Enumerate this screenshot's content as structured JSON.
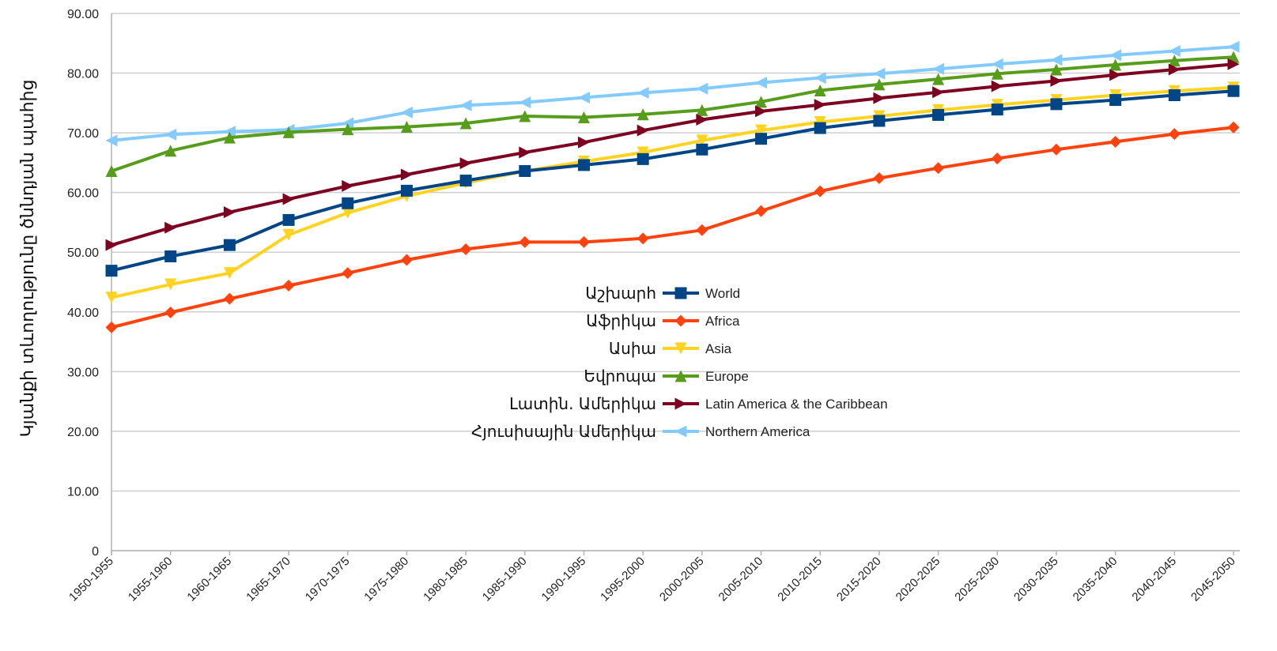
{
  "chart_data": {
    "type": "line",
    "ylabel": "Կյանքի տևողությունը ծննդյան պահից",
    "ylim": [
      0,
      90
    ],
    "yticks": [
      "0",
      "10.00",
      "20.00",
      "30.00",
      "40.00",
      "50.00",
      "60.00",
      "70.00",
      "80.00",
      "90.00"
    ],
    "grid": true,
    "legend_position": "center",
    "categories": [
      "1950-1955",
      "1955-1960",
      "1960-1965",
      "1965-1970",
      "1970-1975",
      "1975-1980",
      "1980-1985",
      "1985-1990",
      "1990-1995",
      "1995-2000",
      "2000-2005",
      "2005-2010",
      "2010-2015",
      "2015-2020",
      "2020-2025",
      "2025-2030",
      "2030-2035",
      "2035-2040",
      "2040-2045",
      "2045-2050"
    ],
    "series": [
      {
        "name": "World",
        "label_hy": "Աշխարհ",
        "color": "#004586",
        "marker": "square",
        "values": [
          46.9,
          49.3,
          51.2,
          55.4,
          58.2,
          60.3,
          62.0,
          63.6,
          64.6,
          65.6,
          67.2,
          69.0,
          70.8,
          72.0,
          73.0,
          73.9,
          74.8,
          75.5,
          76.3,
          77.0
        ]
      },
      {
        "name": "Africa",
        "label_hy": "Աֆրիկա",
        "color": "#ff420e",
        "marker": "diamond",
        "values": [
          37.4,
          39.9,
          42.2,
          44.4,
          46.5,
          48.7,
          50.5,
          51.7,
          51.7,
          52.3,
          53.7,
          56.9,
          60.2,
          62.4,
          64.1,
          65.7,
          67.2,
          68.5,
          69.8,
          70.9
        ]
      },
      {
        "name": "Asia",
        "label_hy": "Ասիա",
        "color": "#ffd320",
        "marker": "triangle-down",
        "values": [
          42.4,
          44.6,
          46.5,
          52.9,
          56.6,
          59.4,
          61.6,
          63.6,
          65.2,
          66.7,
          68.7,
          70.4,
          71.8,
          72.8,
          73.8,
          74.7,
          75.5,
          76.3,
          77.0,
          77.6
        ]
      },
      {
        "name": "Europe",
        "label_hy": "Եվրոպա",
        "color": "#579d1c",
        "marker": "triangle-up",
        "values": [
          63.6,
          67.0,
          69.2,
          70.1,
          70.6,
          71.0,
          71.6,
          72.8,
          72.6,
          73.1,
          73.8,
          75.2,
          77.1,
          78.1,
          79.0,
          79.9,
          80.6,
          81.4,
          82.1,
          82.7
        ]
      },
      {
        "name": "Latin America & the Caribbean",
        "label_hy": "Լատին. Ամերիկա",
        "color": "#7e0021",
        "marker": "triangle-right",
        "values": [
          51.2,
          54.1,
          56.7,
          58.9,
          61.1,
          63.0,
          64.9,
          66.7,
          68.4,
          70.4,
          72.2,
          73.6,
          74.7,
          75.8,
          76.8,
          77.8,
          78.7,
          79.7,
          80.6,
          81.5
        ]
      },
      {
        "name": "Northern America",
        "label_hy": "Հյուսիսային Ամերիկա",
        "color": "#83caff",
        "marker": "triangle-left",
        "values": [
          68.7,
          69.7,
          70.2,
          70.5,
          71.6,
          73.4,
          74.6,
          75.1,
          75.9,
          76.7,
          77.4,
          78.4,
          79.2,
          79.9,
          80.7,
          81.5,
          82.2,
          83.0,
          83.7,
          84.4
        ]
      }
    ]
  }
}
